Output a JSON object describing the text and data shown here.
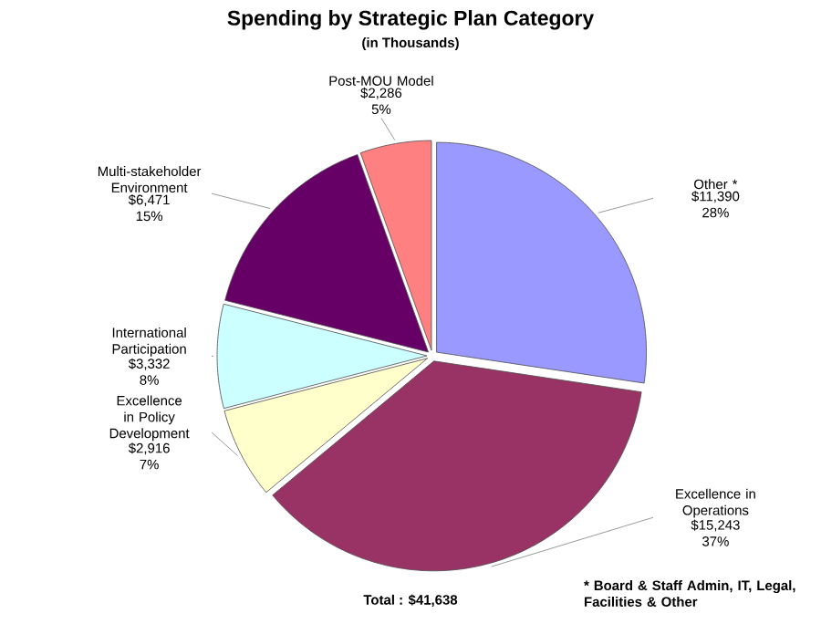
{
  "chart_data": {
    "type": "pie",
    "title": "Spending by Strategic Plan Category",
    "subtitle": "(in Thousands)",
    "categories": [
      "Other *",
      "Excellence in Operations",
      "Excellence in Policy Development",
      "International Participation",
      "Multi-stakeholder Environment",
      "Post-MOU Model"
    ],
    "values": [
      11390,
      15243,
      2916,
      3332,
      6471,
      2286
    ],
    "value_labels": [
      "$11,390 28%",
      "$15,243 37%",
      "$2,916 7%",
      "$3,332 8%",
      "$6,471 15%",
      "$2,286 5%"
    ],
    "colors": [
      "#9999ff",
      "#993366",
      "#ffffcc",
      "#ccffff",
      "#660066",
      "#ff8080"
    ],
    "annotations": [
      "Total :  $41,638",
      "* Board & Staff Admin, IT, Legal, Facilities & Other"
    ]
  }
}
